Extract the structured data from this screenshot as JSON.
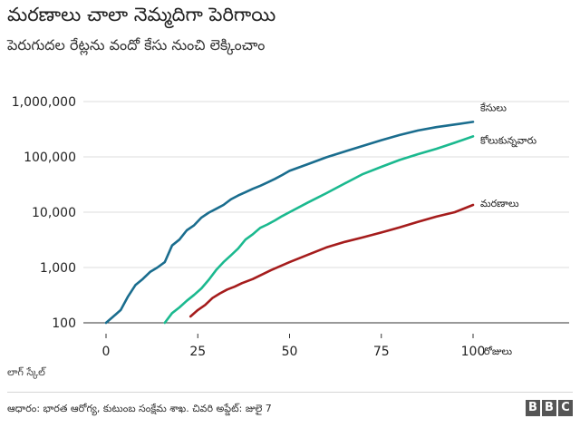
{
  "header": {
    "title": "మరణాలు చాలా నెమ్మదిగా పెరిగాయి",
    "subtitle": "పెరుగుదల రేట్లను వందో కేసు నుంచి లెక్కించాం"
  },
  "scale_note": "లాగ్ స్కేల్",
  "footer": {
    "source": "ఆధారం: భారత ఆరోగ్య, కుటుంబ సంక్షేమ శాఖ. చివరి అప్డేట్: జులై 7",
    "logo_letters": [
      "B",
      "B",
      "C"
    ]
  },
  "chart_data": {
    "type": "line",
    "title": "మరణాలు చాలా నెమ్మదిగా పెరిగాయి",
    "subtitle": "పెరుగుదల రేట్లను వందో కేసు నుంచి లెక్కించాం",
    "xlabel": "రోజులు",
    "ylabel": "",
    "y_scale": "log",
    "ylim": [
      100,
      1000000
    ],
    "xlim": [
      0,
      100
    ],
    "x_ticks": [
      "0",
      "25",
      "50",
      "75",
      "100"
    ],
    "y_ticks": [
      "100",
      "1,000",
      "10,000",
      "100,000",
      "1,000,000"
    ],
    "grid": "horizontal",
    "series": [
      {
        "name": "కేసులు",
        "color": "#1a6d8e",
        "x": [
          0,
          2,
          4,
          6,
          8,
          10,
          12,
          14,
          16,
          18,
          20,
          22,
          24,
          26,
          28,
          30,
          32,
          34,
          36,
          38,
          40,
          42,
          44,
          46,
          48,
          50,
          55,
          60,
          65,
          70,
          75,
          80,
          85,
          90,
          95,
          100
        ],
        "y": [
          100,
          130,
          170,
          300,
          480,
          620,
          830,
          1000,
          1250,
          2500,
          3200,
          4700,
          5800,
          8000,
          9800,
          11500,
          13500,
          17000,
          20000,
          23000,
          26500,
          30000,
          34500,
          40000,
          47000,
          56000,
          74000,
          98000,
          125000,
          158000,
          200000,
          248000,
          300000,
          345000,
          385000,
          430000
        ]
      },
      {
        "name": "కోలుకున్నవారు",
        "color": "#1bb98f",
        "x": [
          16,
          18,
          20,
          22,
          24,
          26,
          28,
          30,
          32,
          34,
          36,
          38,
          40,
          42,
          44,
          46,
          48,
          50,
          55,
          60,
          65,
          70,
          75,
          80,
          85,
          90,
          95,
          100
        ],
        "y": [
          100,
          150,
          190,
          250,
          320,
          420,
          600,
          900,
          1250,
          1650,
          2200,
          3200,
          4000,
          5200,
          6000,
          7100,
          8500,
          10000,
          15000,
          22000,
          33000,
          49000,
          66000,
          88000,
          112000,
          140000,
          180000,
          235000
        ]
      },
      {
        "name": "మరణాలు",
        "color": "#a51c1c",
        "x": [
          23,
          25,
          27,
          29,
          31,
          33,
          35,
          37,
          40,
          45,
          50,
          55,
          60,
          65,
          70,
          75,
          80,
          85,
          90,
          95,
          100
        ],
        "y": [
          130,
          170,
          210,
          280,
          340,
          400,
          450,
          520,
          620,
          900,
          1250,
          1700,
          2300,
          2900,
          3500,
          4300,
          5300,
          6700,
          8300,
          10000,
          13500
        ]
      }
    ]
  }
}
